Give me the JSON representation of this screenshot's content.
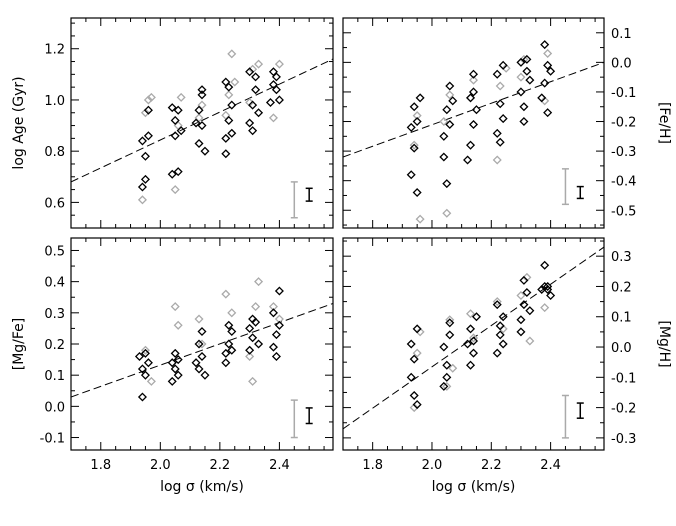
{
  "chart_data": [
    {
      "type": "scatter",
      "panel": "top-left",
      "title": "",
      "xlabel": "",
      "ylabel": "log Age (Gyr)",
      "y_axis_side": "left",
      "xlim": [
        1.7,
        2.58
      ],
      "ylim": [
        0.5,
        1.32
      ],
      "yticks": [
        0.6,
        0.8,
        1.0,
        1.2
      ],
      "ytick_labels": [
        "0.6",
        "0.8",
        "1.0",
        "1.2"
      ],
      "fit_line": [
        [
          1.7,
          0.68
        ],
        [
          2.58,
          1.16
        ]
      ],
      "error_bars": [
        {
          "series": "gray",
          "x": 2.45,
          "center": 0.61,
          "half": 0.07
        },
        {
          "series": "black",
          "x": 2.5,
          "center": 0.63,
          "half": 0.025
        }
      ],
      "series": [
        {
          "name": "gray",
          "color": "#aaaaaa",
          "points": [
            [
              1.94,
              0.61
            ],
            [
              1.95,
              0.95
            ],
            [
              1.96,
              1.0
            ],
            [
              1.97,
              1.01
            ],
            [
              2.05,
              0.65
            ],
            [
              2.06,
              0.9
            ],
            [
              2.07,
              1.01
            ],
            [
              2.13,
              0.93
            ],
            [
              2.14,
              0.98
            ],
            [
              2.22,
              0.94
            ],
            [
              2.23,
              1.02
            ],
            [
              2.24,
              1.18
            ],
            [
              2.25,
              1.07
            ],
            [
              2.3,
              0.99
            ],
            [
              2.31,
              1.12
            ],
            [
              2.33,
              1.14
            ],
            [
              2.38,
              0.93
            ],
            [
              2.4,
              1.14
            ]
          ]
        },
        {
          "name": "black",
          "color": "#000000",
          "points": [
            [
              1.94,
              0.84
            ],
            [
              1.95,
              0.69
            ],
            [
              1.96,
              0.86
            ],
            [
              1.95,
              0.78
            ],
            [
              1.94,
              0.66
            ],
            [
              1.96,
              0.96
            ],
            [
              2.04,
              0.71
            ],
            [
              2.05,
              0.86
            ],
            [
              2.06,
              0.96
            ],
            [
              2.04,
              0.97
            ],
            [
              2.06,
              0.72
            ],
            [
              2.07,
              0.88
            ],
            [
              2.05,
              0.92
            ],
            [
              2.13,
              0.83
            ],
            [
              2.14,
              0.9
            ],
            [
              2.13,
              0.96
            ],
            [
              2.14,
              1.02
            ],
            [
              2.15,
              0.8
            ],
            [
              2.12,
              0.91
            ],
            [
              2.14,
              1.04
            ],
            [
              2.22,
              0.85
            ],
            [
              2.23,
              0.92
            ],
            [
              2.24,
              0.98
            ],
            [
              2.23,
              1.05
            ],
            [
              2.22,
              0.79
            ],
            [
              2.24,
              0.87
            ],
            [
              2.22,
              1.07
            ],
            [
              2.3,
              0.91
            ],
            [
              2.31,
              0.98
            ],
            [
              2.32,
              1.04
            ],
            [
              2.3,
              1.11
            ],
            [
              2.31,
              0.88
            ],
            [
              2.32,
              1.09
            ],
            [
              2.33,
              0.95
            ],
            [
              2.37,
              0.99
            ],
            [
              2.38,
              1.06
            ],
            [
              2.39,
              1.09
            ],
            [
              2.4,
              1.0
            ],
            [
              2.39,
              1.04
            ],
            [
              2.38,
              1.11
            ]
          ]
        }
      ]
    },
    {
      "type": "scatter",
      "panel": "top-right",
      "title": "",
      "xlabel": "",
      "ylabel": "[Fe/H]",
      "y_axis_side": "right",
      "xlim": [
        1.7,
        2.58
      ],
      "ylim": [
        -0.56,
        0.15
      ],
      "yticks": [
        -0.5,
        -0.4,
        -0.3,
        -0.2,
        -0.1,
        0.0,
        0.1
      ],
      "ytick_labels": [
        "-0.5",
        "-0.4",
        "-0.3",
        "-0.2",
        "-0.1",
        "0.0",
        "0.1"
      ],
      "fit_line": [
        [
          1.7,
          -0.32
        ],
        [
          2.58,
          0.0
        ]
      ],
      "error_bars": [
        {
          "series": "gray",
          "x": 2.45,
          "center": -0.42,
          "half": 0.06
        },
        {
          "series": "black",
          "x": 2.5,
          "center": -0.44,
          "half": 0.02
        }
      ],
      "series": [
        {
          "name": "gray",
          "color": "#aaaaaa",
          "points": [
            [
              1.96,
              -0.53
            ],
            [
              1.94,
              -0.28
            ],
            [
              1.95,
              -0.18
            ],
            [
              2.05,
              -0.51
            ],
            [
              2.06,
              -0.11
            ],
            [
              2.04,
              -0.2
            ],
            [
              2.13,
              -0.12
            ],
            [
              2.14,
              -0.06
            ],
            [
              2.22,
              -0.33
            ],
            [
              2.23,
              -0.08
            ],
            [
              2.25,
              -0.02
            ],
            [
              2.3,
              -0.05
            ],
            [
              2.31,
              0.01
            ],
            [
              2.38,
              -0.13
            ],
            [
              2.39,
              0.03
            ]
          ]
        },
        {
          "name": "black",
          "color": "#000000",
          "points": [
            [
              1.93,
              -0.22
            ],
            [
              1.94,
              -0.29
            ],
            [
              1.95,
              -0.2
            ],
            [
              1.94,
              -0.15
            ],
            [
              1.93,
              -0.38
            ],
            [
              1.96,
              -0.12
            ],
            [
              1.95,
              -0.44
            ],
            [
              2.04,
              -0.25
            ],
            [
              2.05,
              -0.16
            ],
            [
              2.06,
              -0.08
            ],
            [
              2.04,
              -0.32
            ],
            [
              2.06,
              -0.21
            ],
            [
              2.05,
              -0.41
            ],
            [
              2.07,
              -0.13
            ],
            [
              2.13,
              -0.28
            ],
            [
              2.14,
              -0.21
            ],
            [
              2.13,
              -0.12
            ],
            [
              2.14,
              -0.1
            ],
            [
              2.12,
              -0.33
            ],
            [
              2.15,
              -0.16
            ],
            [
              2.14,
              -0.04
            ],
            [
              2.22,
              -0.24
            ],
            [
              2.23,
              -0.14
            ],
            [
              2.22,
              -0.04
            ],
            [
              2.24,
              -0.19
            ],
            [
              2.23,
              -0.27
            ],
            [
              2.24,
              -0.01
            ],
            [
              2.3,
              -0.1
            ],
            [
              2.31,
              -0.2
            ],
            [
              2.32,
              -0.03
            ],
            [
              2.3,
              0.0
            ],
            [
              2.31,
              -0.15
            ],
            [
              2.32,
              0.01
            ],
            [
              2.33,
              -0.06
            ],
            [
              2.37,
              -0.12
            ],
            [
              2.38,
              -0.07
            ],
            [
              2.39,
              -0.01
            ],
            [
              2.38,
              0.06
            ],
            [
              2.4,
              -0.03
            ],
            [
              2.39,
              -0.17
            ]
          ]
        }
      ]
    },
    {
      "type": "scatter",
      "panel": "bottom-left",
      "title": "",
      "xlabel": "log σ (km/s)",
      "ylabel": "[Mg/Fe]",
      "y_axis_side": "left",
      "xlim": [
        1.7,
        2.58
      ],
      "xticks": [
        1.8,
        2.0,
        2.2,
        2.4
      ],
      "xtick_labels": [
        "1.8",
        "2.0",
        "2.2",
        "2.4"
      ],
      "ylim": [
        -0.14,
        0.54
      ],
      "yticks": [
        -0.1,
        0.0,
        0.1,
        0.2,
        0.3,
        0.4,
        0.5
      ],
      "ytick_labels": [
        "-0.1",
        "0.0",
        "0.1",
        "0.2",
        "0.3",
        "0.4",
        "0.5"
      ],
      "fit_line": [
        [
          1.7,
          0.03
        ],
        [
          2.58,
          0.33
        ]
      ],
      "error_bars": [
        {
          "series": "gray",
          "x": 2.45,
          "center": -0.04,
          "half": 0.06
        },
        {
          "series": "black",
          "x": 2.5,
          "center": -0.03,
          "half": 0.025
        }
      ],
      "series": [
        {
          "name": "gray",
          "color": "#aaaaaa",
          "points": [
            [
              1.95,
              0.18
            ],
            [
              1.97,
              0.08
            ],
            [
              2.05,
              0.32
            ],
            [
              2.06,
              0.26
            ],
            [
              2.13,
              0.28
            ],
            [
              2.14,
              0.2
            ],
            [
              2.22,
              0.36
            ],
            [
              2.24,
              0.3
            ],
            [
              2.3,
              0.16
            ],
            [
              2.31,
              0.08
            ],
            [
              2.32,
              0.32
            ],
            [
              2.33,
              0.4
            ],
            [
              2.38,
              0.32
            ],
            [
              2.4,
              0.28
            ]
          ]
        },
        {
          "name": "black",
          "color": "#000000",
          "points": [
            [
              1.94,
              0.03
            ],
            [
              1.95,
              0.1
            ],
            [
              1.96,
              0.14
            ],
            [
              1.94,
              0.12
            ],
            [
              1.95,
              0.17
            ],
            [
              1.93,
              0.16
            ],
            [
              2.04,
              0.08
            ],
            [
              2.05,
              0.12
            ],
            [
              2.06,
              0.15
            ],
            [
              2.04,
              0.14
            ],
            [
              2.06,
              0.1
            ],
            [
              2.05,
              0.17
            ],
            [
              2.13,
              0.12
            ],
            [
              2.14,
              0.16
            ],
            [
              2.13,
              0.2
            ],
            [
              2.15,
              0.1
            ],
            [
              2.14,
              0.24
            ],
            [
              2.12,
              0.14
            ],
            [
              2.22,
              0.14
            ],
            [
              2.23,
              0.2
            ],
            [
              2.24,
              0.24
            ],
            [
              2.23,
              0.26
            ],
            [
              2.22,
              0.17
            ],
            [
              2.24,
              0.18
            ],
            [
              2.3,
              0.18
            ],
            [
              2.31,
              0.22
            ],
            [
              2.32,
              0.27
            ],
            [
              2.3,
              0.25
            ],
            [
              2.31,
              0.28
            ],
            [
              2.33,
              0.2
            ],
            [
              2.38,
              0.19
            ],
            [
              2.39,
              0.23
            ],
            [
              2.4,
              0.26
            ],
            [
              2.38,
              0.3
            ],
            [
              2.4,
              0.37
            ],
            [
              2.39,
              0.16
            ]
          ]
        }
      ]
    },
    {
      "type": "scatter",
      "panel": "bottom-right",
      "title": "",
      "xlabel": "log σ (km/s)",
      "ylabel": "[Mg/H]",
      "y_axis_side": "right",
      "xlim": [
        1.7,
        2.58
      ],
      "xticks": [
        1.8,
        2.0,
        2.2,
        2.4
      ],
      "xtick_labels": [
        "1.8",
        "2.0",
        "2.2",
        "2.4"
      ],
      "ylim": [
        -0.34,
        0.36
      ],
      "yticks": [
        -0.3,
        -0.2,
        -0.1,
        0.0,
        0.1,
        0.2,
        0.3
      ],
      "ytick_labels": [
        "-0.3",
        "-0.2",
        "-0.1",
        "0.0",
        "0.1",
        "0.2",
        "0.3"
      ],
      "fit_line": [
        [
          1.7,
          -0.27
        ],
        [
          2.58,
          0.33
        ]
      ],
      "error_bars": [
        {
          "series": "gray",
          "x": 2.45,
          "center": -0.23,
          "half": 0.07
        },
        {
          "series": "black",
          "x": 2.5,
          "center": -0.21,
          "half": 0.025
        }
      ],
      "series": [
        {
          "name": "gray",
          "color": "#aaaaaa",
          "points": [
            [
              1.94,
              -0.2
            ],
            [
              1.95,
              -0.02
            ],
            [
              1.96,
              0.05
            ],
            [
              2.05,
              -0.13
            ],
            [
              2.06,
              0.09
            ],
            [
              2.07,
              -0.07
            ],
            [
              2.13,
              0.11
            ],
            [
              2.14,
              0.03
            ],
            [
              2.22,
              0.15
            ],
            [
              2.24,
              0.06
            ],
            [
              2.3,
              0.17
            ],
            [
              2.32,
              0.23
            ],
            [
              2.33,
              0.02
            ],
            [
              2.38,
              0.13
            ]
          ]
        },
        {
          "name": "black",
          "color": "#000000",
          "points": [
            [
              1.93,
              -0.1
            ],
            [
              1.94,
              -0.04
            ],
            [
              1.95,
              0.06
            ],
            [
              1.93,
              0.01
            ],
            [
              1.94,
              -0.16
            ],
            [
              1.95,
              -0.19
            ],
            [
              2.04,
              -0.13
            ],
            [
              2.05,
              -0.06
            ],
            [
              2.06,
              0.04
            ],
            [
              2.04,
              0.0
            ],
            [
              2.06,
              0.08
            ],
            [
              2.05,
              -0.1
            ],
            [
              2.13,
              -0.06
            ],
            [
              2.14,
              0.02
            ],
            [
              2.13,
              0.06
            ],
            [
              2.15,
              0.1
            ],
            [
              2.14,
              -0.02
            ],
            [
              2.12,
              0.01
            ],
            [
              2.22,
              -0.02
            ],
            [
              2.23,
              0.04
            ],
            [
              2.24,
              0.1
            ],
            [
              2.22,
              0.14
            ],
            [
              2.23,
              0.07
            ],
            [
              2.24,
              0.01
            ],
            [
              2.3,
              0.09
            ],
            [
              2.31,
              0.14
            ],
            [
              2.32,
              0.18
            ],
            [
              2.3,
              0.05
            ],
            [
              2.31,
              0.22
            ],
            [
              2.33,
              0.12
            ],
            [
              2.37,
              0.19
            ],
            [
              2.38,
              0.2
            ],
            [
              2.39,
              0.19
            ],
            [
              2.38,
              0.27
            ],
            [
              2.4,
              0.17
            ],
            [
              2.39,
              0.2
            ]
          ]
        }
      ]
    }
  ]
}
